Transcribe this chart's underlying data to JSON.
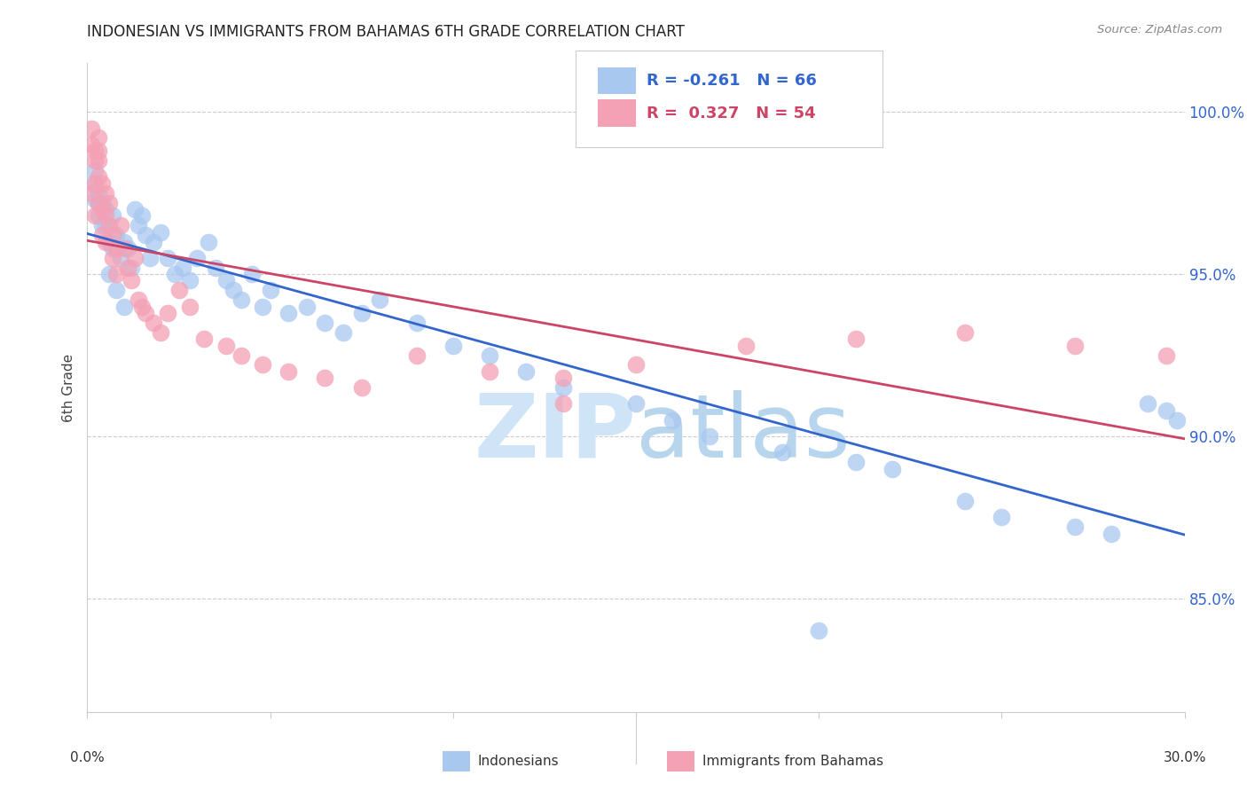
{
  "title": "INDONESIAN VS IMMIGRANTS FROM BAHAMAS 6TH GRADE CORRELATION CHART",
  "source": "Source: ZipAtlas.com",
  "ylabel": "6th Grade",
  "ytick_labels": [
    "85.0%",
    "90.0%",
    "95.0%",
    "100.0%"
  ],
  "ytick_values": [
    0.85,
    0.9,
    0.95,
    1.0
  ],
  "xlim": [
    0.0,
    0.3
  ],
  "ylim": [
    0.815,
    1.015
  ],
  "watermark_zip": "ZIP",
  "watermark_atlas": "atlas",
  "legend_blue_R": "-0.261",
  "legend_blue_N": "66",
  "legend_pink_R": "0.327",
  "legend_pink_N": "54",
  "blue_color": "#A8C8F0",
  "pink_color": "#F4A0B5",
  "blue_line_color": "#3366CC",
  "pink_line_color": "#CC4466",
  "grid_color": "#CCCCCC",
  "background_color": "#FFFFFF",
  "blue_x": [
    0.001,
    0.002,
    0.002,
    0.003,
    0.003,
    0.004,
    0.005,
    0.005,
    0.006,
    0.007,
    0.007,
    0.008,
    0.009,
    0.01,
    0.011,
    0.012,
    0.013,
    0.014,
    0.015,
    0.016,
    0.017,
    0.018,
    0.02,
    0.022,
    0.024,
    0.026,
    0.028,
    0.03,
    0.033,
    0.035,
    0.038,
    0.04,
    0.042,
    0.045,
    0.048,
    0.05,
    0.055,
    0.06,
    0.065,
    0.07,
    0.075,
    0.08,
    0.09,
    0.1,
    0.11,
    0.12,
    0.13,
    0.15,
    0.16,
    0.17,
    0.19,
    0.21,
    0.22,
    0.24,
    0.25,
    0.27,
    0.28,
    0.29,
    0.295,
    0.298,
    0.003,
    0.004,
    0.006,
    0.008,
    0.01,
    0.2
  ],
  "blue_y": [
    0.978,
    0.982,
    0.973,
    0.975,
    0.968,
    0.972,
    0.965,
    0.97,
    0.96,
    0.968,
    0.958,
    0.962,
    0.955,
    0.96,
    0.958,
    0.952,
    0.97,
    0.965,
    0.968,
    0.962,
    0.955,
    0.96,
    0.963,
    0.955,
    0.95,
    0.952,
    0.948,
    0.955,
    0.96,
    0.952,
    0.948,
    0.945,
    0.942,
    0.95,
    0.94,
    0.945,
    0.938,
    0.94,
    0.935,
    0.932,
    0.938,
    0.942,
    0.935,
    0.928,
    0.925,
    0.92,
    0.915,
    0.91,
    0.905,
    0.9,
    0.895,
    0.892,
    0.89,
    0.88,
    0.875,
    0.872,
    0.87,
    0.91,
    0.908,
    0.905,
    0.972,
    0.965,
    0.95,
    0.945,
    0.94,
    0.84
  ],
  "pink_x": [
    0.001,
    0.001,
    0.002,
    0.002,
    0.002,
    0.003,
    0.003,
    0.003,
    0.004,
    0.004,
    0.004,
    0.005,
    0.005,
    0.005,
    0.006,
    0.006,
    0.007,
    0.007,
    0.008,
    0.008,
    0.009,
    0.01,
    0.011,
    0.012,
    0.013,
    0.014,
    0.015,
    0.016,
    0.018,
    0.02,
    0.022,
    0.025,
    0.028,
    0.032,
    0.038,
    0.042,
    0.048,
    0.055,
    0.065,
    0.075,
    0.09,
    0.11,
    0.13,
    0.15,
    0.18,
    0.21,
    0.24,
    0.27,
    0.295,
    0.001,
    0.002,
    0.003,
    0.003,
    0.13
  ],
  "pink_y": [
    0.99,
    0.975,
    0.985,
    0.978,
    0.968,
    0.988,
    0.98,
    0.972,
    0.97,
    0.962,
    0.978,
    0.975,
    0.968,
    0.96,
    0.972,
    0.965,
    0.962,
    0.955,
    0.958,
    0.95,
    0.965,
    0.958,
    0.952,
    0.948,
    0.955,
    0.942,
    0.94,
    0.938,
    0.935,
    0.932,
    0.938,
    0.945,
    0.94,
    0.93,
    0.928,
    0.925,
    0.922,
    0.92,
    0.918,
    0.915,
    0.925,
    0.92,
    0.918,
    0.922,
    0.928,
    0.93,
    0.932,
    0.928,
    0.925,
    0.995,
    0.988,
    0.992,
    0.985,
    0.91
  ]
}
